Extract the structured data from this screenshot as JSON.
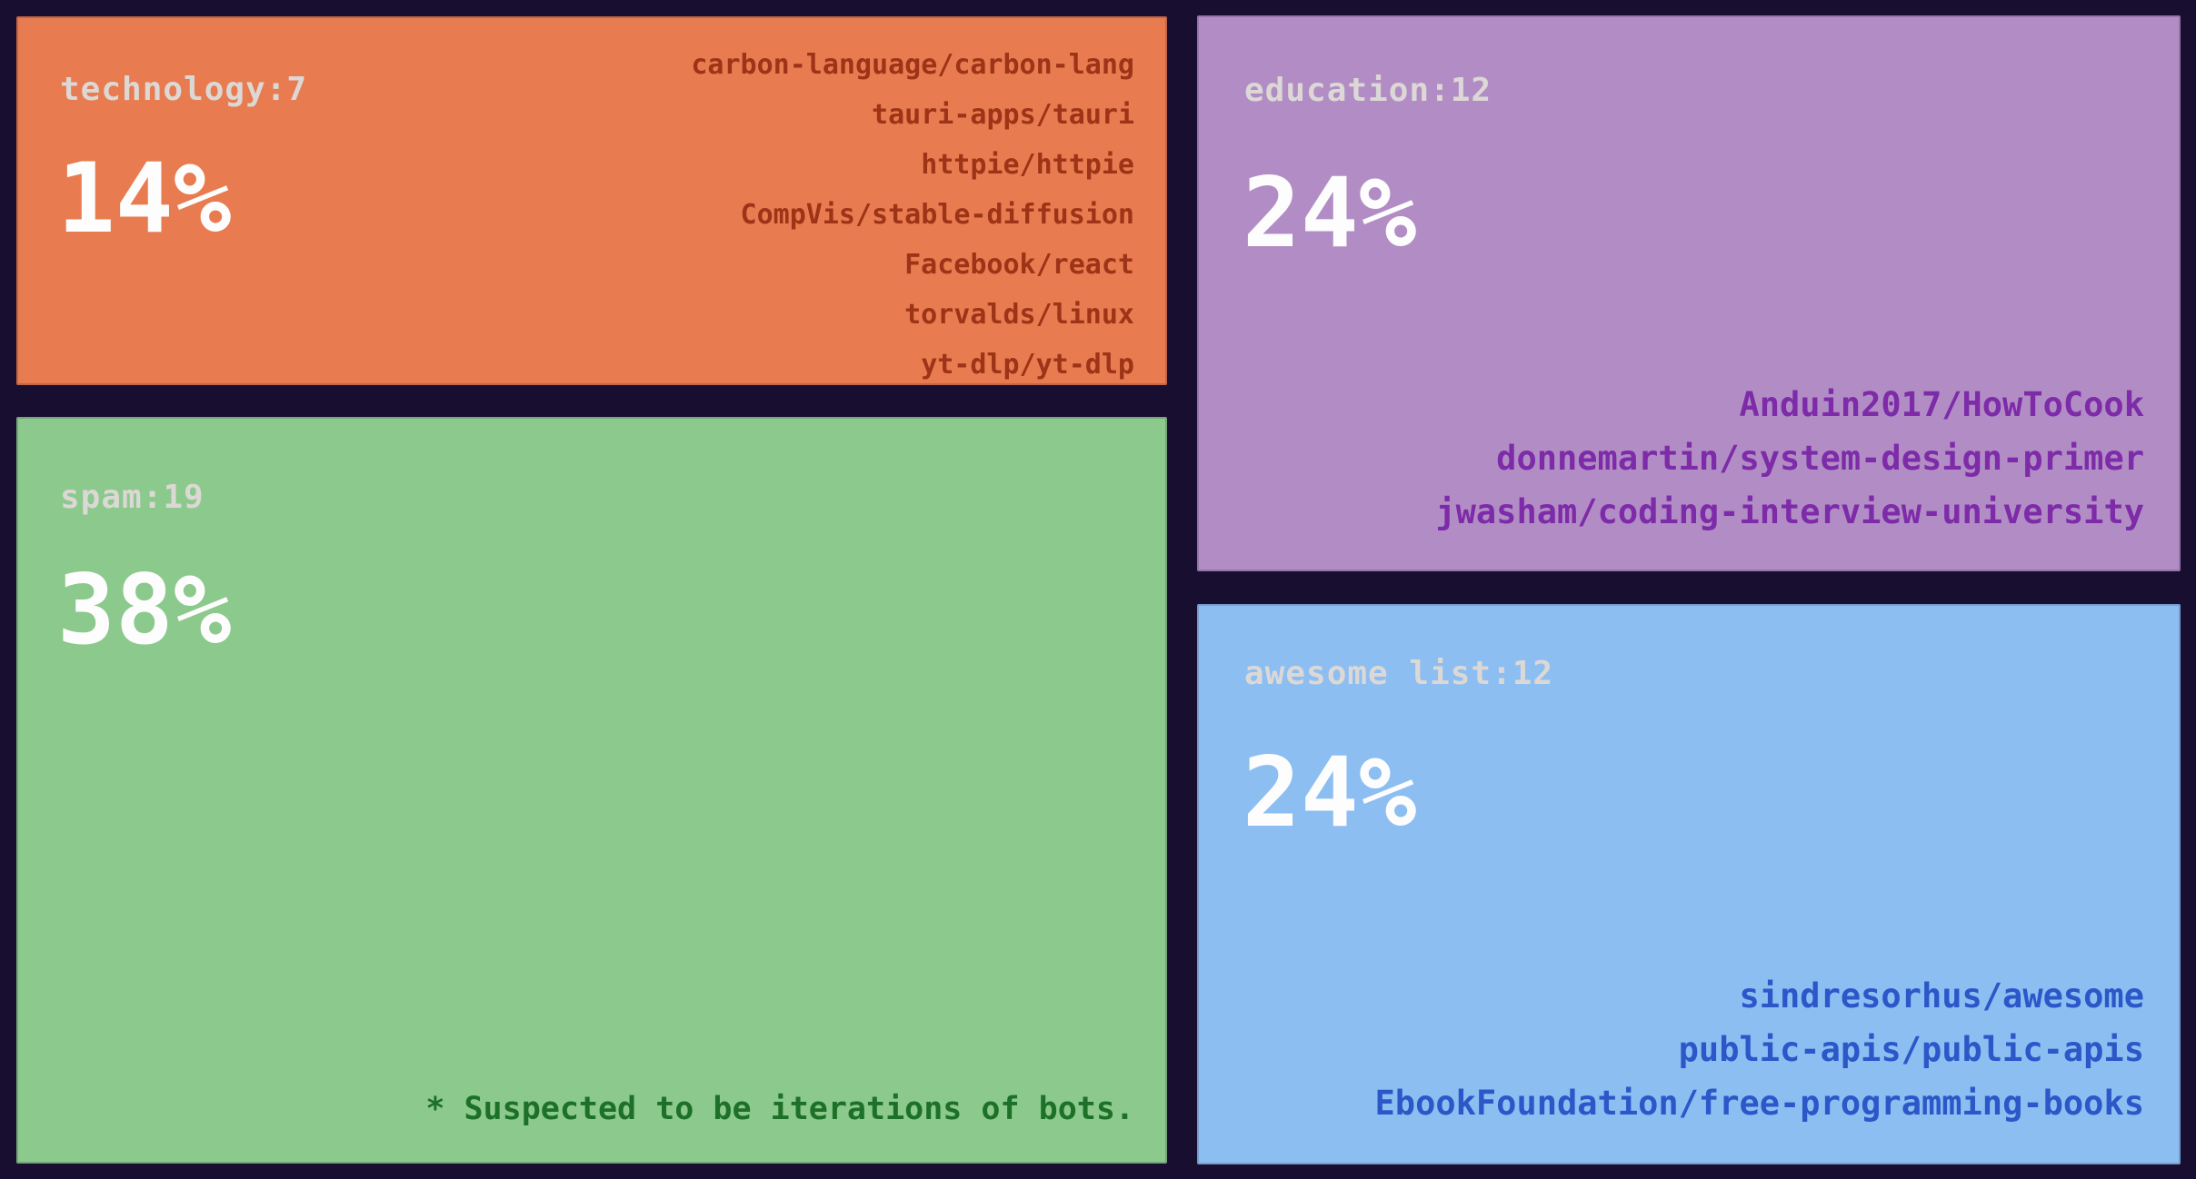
{
  "chart_data": {
    "type": "treemap",
    "title": "",
    "legend_position": "none",
    "series": [
      {
        "category": "technology",
        "count": 7,
        "percent": 14,
        "color": "#e87c50",
        "repos": [
          "carbon-language/carbon-lang",
          "tauri-apps/tauri",
          "httpie/httpie",
          "CompVis/stable-diffusion",
          "Facebook/react",
          "torvalds/linux",
          "yt-dlp/yt-dlp"
        ]
      },
      {
        "category": "spam",
        "count": 19,
        "percent": 38,
        "color": "#8cc98c",
        "repos": [],
        "annotation": "* Suspected to be iterations of bots."
      },
      {
        "category": "education",
        "count": 12,
        "percent": 24,
        "color": "#b28dc5",
        "repos": [
          "Anduin2017/HowToCook",
          "donnemartin/system-design-primer",
          "jwasham/coding-interview-university"
        ]
      },
      {
        "category": "awesome list",
        "count": 12,
        "percent": 24,
        "color": "#8cbef2",
        "repos": [
          "sindresorhus/awesome",
          "public-apis/public-apis",
          "EbookFoundation/free-programming-books"
        ]
      }
    ]
  },
  "colors": {
    "background": "#180e2f",
    "tile_technology": "#e87c50",
    "tile_spam": "#8cc98c",
    "tile_education": "#b28dc5",
    "tile_awesome_list": "#8cbef2",
    "header_text": "#dcd8d5",
    "percent_text": "#fdfdfd",
    "technology_repo_text": "#9d3317",
    "spam_note_text": "#1d7028",
    "education_repo_text": "#7d2ba8",
    "awesome_repo_text": "#2b57c8"
  },
  "blocks": [
    {
      "header": "technology:7",
      "percent": "14%",
      "repos": [
        "carbon-language/carbon-lang",
        "tauri-apps/tauri",
        "httpie/httpie",
        "CompVis/stable-diffusion",
        "Facebook/react",
        "torvalds/linux",
        "yt-dlp/yt-dlp"
      ]
    },
    {
      "header": "spam:19",
      "percent": "38%",
      "note": "* Suspected to be iterations of bots."
    },
    {
      "header": "education:12",
      "percent": "24%",
      "repos": [
        "Anduin2017/HowToCook",
        "donnemartin/system-design-primer",
        "jwasham/coding-interview-university"
      ]
    },
    {
      "header": "awesome list:12",
      "percent": "24%",
      "repos": [
        "sindresorhus/awesome",
        "public-apis/public-apis",
        "EbookFoundation/free-programming-books"
      ]
    }
  ]
}
